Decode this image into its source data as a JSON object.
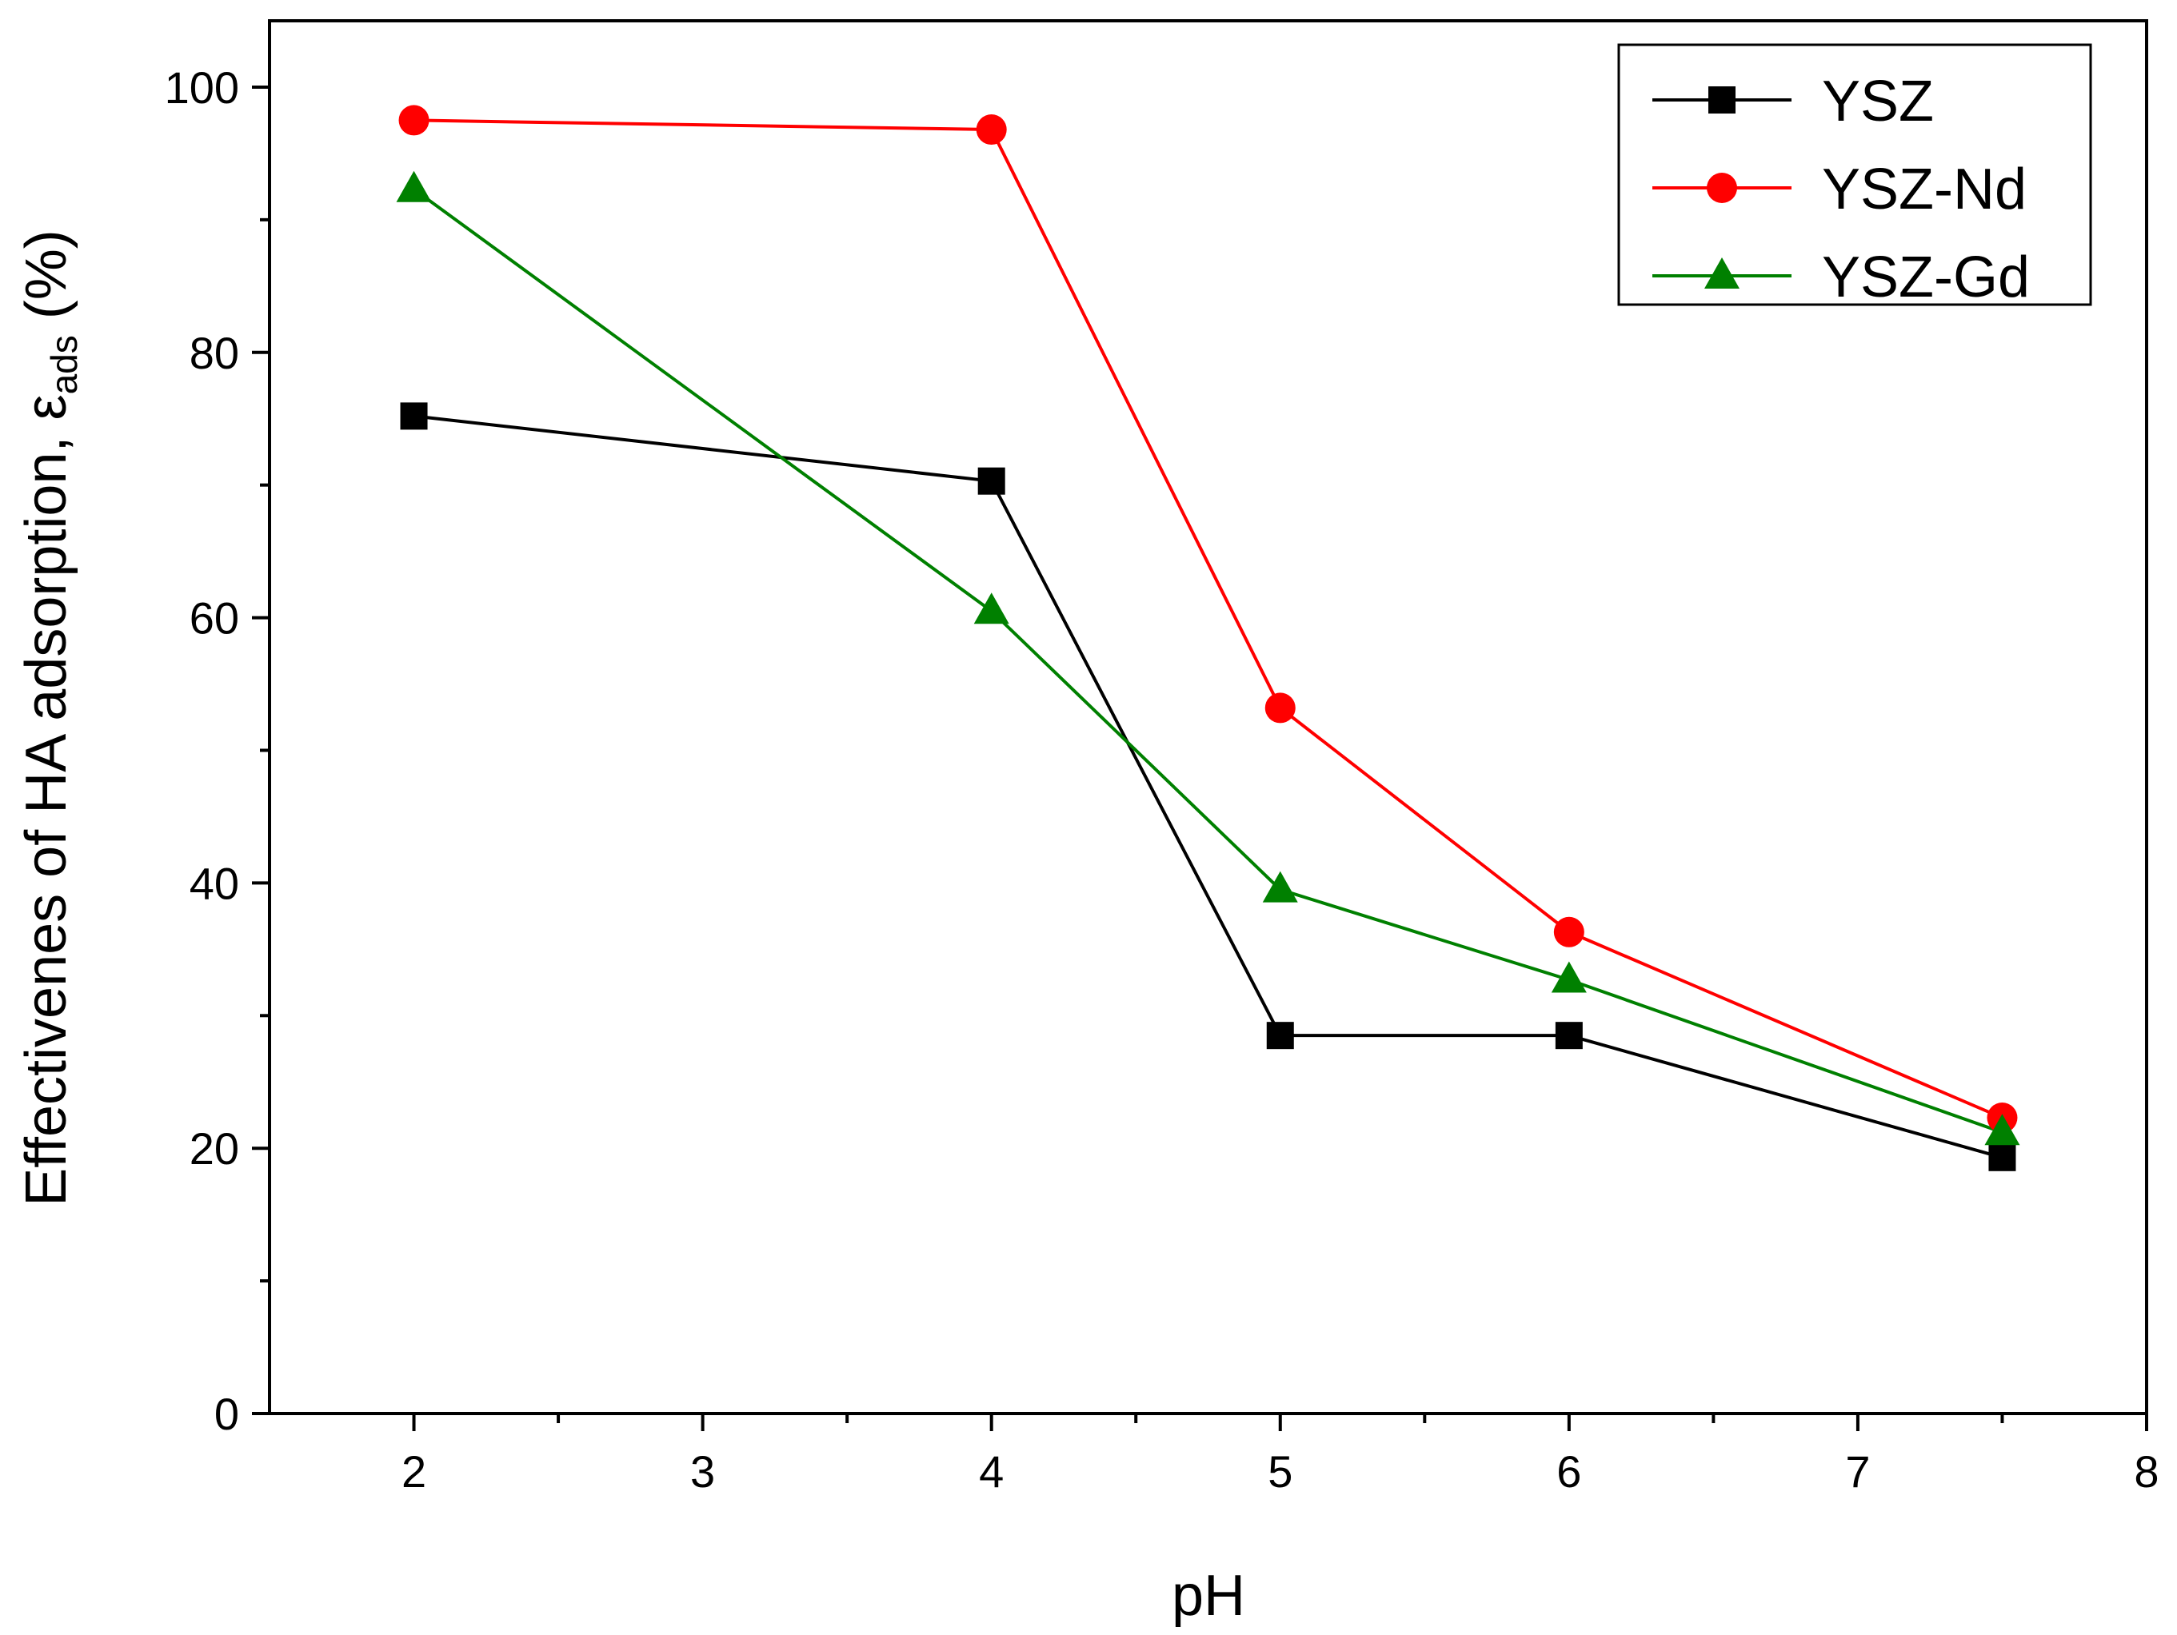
{
  "chart_data": {
    "type": "line",
    "title": "",
    "xlabel": "pH",
    "ylabel": {
      "main": "Effectivenes of HA adsorption, ",
      "symbol": "ε",
      "subscript": "ads",
      "suffix": " (%)"
    },
    "xlim": [
      1.5,
      8
    ],
    "ylim": [
      0,
      105
    ],
    "x_ticks": [
      2,
      3,
      4,
      5,
      6,
      7,
      8
    ],
    "x_tick_labels": [
      "2",
      "3",
      "4",
      "5",
      "6",
      "7",
      "8"
    ],
    "x_minor_ticks": [
      2.5,
      3.5,
      4.5,
      5.5,
      6.5,
      7.5
    ],
    "y_ticks": [
      0,
      20,
      40,
      60,
      80,
      100
    ],
    "y_tick_labels": [
      "0",
      "20",
      "40",
      "60",
      "80",
      "100"
    ],
    "y_minor_ticks": [
      10,
      30,
      50,
      70,
      90
    ],
    "grid": false,
    "legend_position": "top-right",
    "series": [
      {
        "name": "YSZ",
        "color": "#000000",
        "marker": "square",
        "x": [
          2,
          4,
          5,
          6,
          7.5
        ],
        "values": [
          75.2,
          70.3,
          28.5,
          28.5,
          19.3
        ]
      },
      {
        "name": "YSZ-Nd",
        "color": "#ff0000",
        "marker": "circle",
        "x": [
          2,
          4,
          5,
          6,
          7.5
        ],
        "values": [
          97.5,
          96.8,
          53.2,
          36.3,
          22.3
        ]
      },
      {
        "name": "YSZ-Gd",
        "color": "#008000",
        "marker": "triangle",
        "x": [
          2,
          4,
          5,
          6,
          7.5
        ],
        "values": [
          92.3,
          60.5,
          39.5,
          32.7,
          21.2
        ]
      }
    ]
  }
}
